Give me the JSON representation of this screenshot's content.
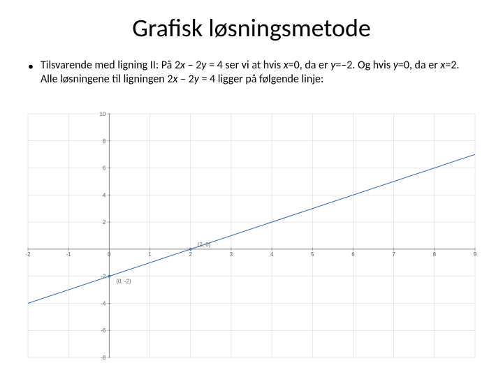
{
  "slide": {
    "title": "Grafisk løsningsmetode",
    "bullet_char": "•",
    "body_parts": [
      {
        "t": "Tilsvarende med ligning II: På 2",
        "i": false
      },
      {
        "t": "x",
        "i": true
      },
      {
        "t": " – 2",
        "i": false
      },
      {
        "t": "y",
        "i": true
      },
      {
        "t": " = 4 ser vi at hvis ",
        "i": false
      },
      {
        "t": "x",
        "i": true
      },
      {
        "t": "=0, da er ",
        "i": false
      },
      {
        "t": "y",
        "i": true
      },
      {
        "t": "=–2. Og hvis ",
        "i": false
      },
      {
        "t": "y",
        "i": true
      },
      {
        "t": "=0, da er ",
        "i": false
      },
      {
        "t": "x",
        "i": true
      },
      {
        "t": "=2. Alle løsningene til ligningen 2",
        "i": false
      },
      {
        "t": "x",
        "i": true
      },
      {
        "t": " – 2",
        "i": false
      },
      {
        "t": "y",
        "i": true
      },
      {
        "t": " = 4 ligger på følgende linje:",
        "i": false
      }
    ]
  },
  "chart": {
    "type": "line",
    "background_color": "#ffffff",
    "axis_color": "#808080",
    "grid_color": "#d0d0d0",
    "line_color": "#4a7ebb",
    "text_color": "#606060",
    "xlim": [
      -2,
      9
    ],
    "ylim": [
      -8,
      10
    ],
    "y_axis_at_x": 0,
    "x_axis_at_y": 0,
    "x_ticks": [
      -2,
      -1,
      0,
      1,
      2,
      3,
      4,
      5,
      6,
      7,
      8,
      9
    ],
    "y_ticks": [
      -8,
      -6,
      -4,
      -2,
      2,
      4,
      6,
      8,
      10
    ],
    "line_points": [
      {
        "x": -2,
        "y": -4
      },
      {
        "x": 9,
        "y": 7
      }
    ],
    "marked_points": [
      {
        "x": 2,
        "y": 0,
        "label": "(2, 0)"
      },
      {
        "x": 0,
        "y": -2,
        "label": "(0, -2)"
      }
    ],
    "tick_fontsize": 8,
    "line_width": 1.2
  }
}
